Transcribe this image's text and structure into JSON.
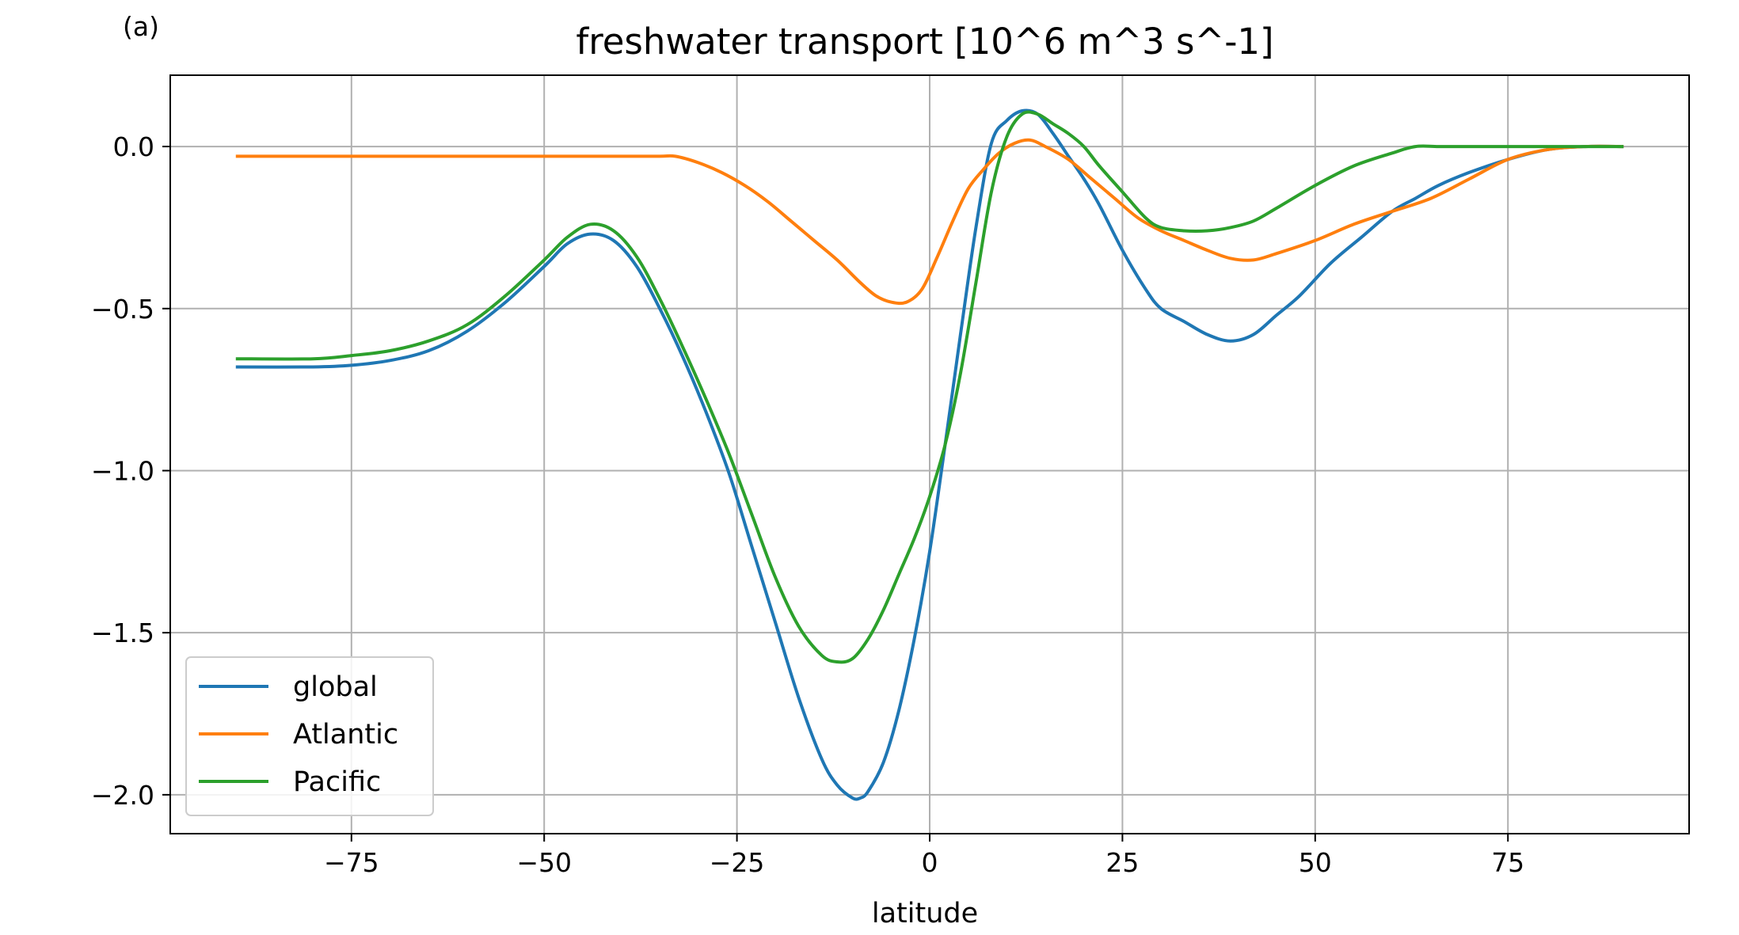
{
  "chart_data": {
    "type": "line",
    "panel_label": "(a)",
    "title": "freshwater transport [10^6 m^3 s^-1]",
    "xlabel": "latitude",
    "ylabel": "",
    "xlim": [
      -98.5,
      98.5
    ],
    "ylim": [
      -2.12,
      0.22
    ],
    "xticks": [
      -75,
      -50,
      -25,
      0,
      25,
      50,
      75
    ],
    "xtick_labels": [
      "−75",
      "−50",
      "−25",
      "0",
      "25",
      "50",
      "75"
    ],
    "yticks": [
      0.0,
      -0.5,
      -1.0,
      -1.5,
      -2.0
    ],
    "ytick_labels": [
      "0.0",
      "−0.5",
      "−1.0",
      "−1.5",
      "−2.0"
    ],
    "grid": true,
    "legend_position": "lower-left",
    "series": [
      {
        "name": "global",
        "color": "#1f77b4",
        "x": [
          -90,
          -80,
          -75,
          -70,
          -65,
          -60,
          -55,
          -50,
          -47,
          -44,
          -41,
          -38,
          -35,
          -32,
          -29,
          -26,
          -23,
          -20,
          -17,
          -14,
          -12,
          -10,
          -9,
          -8,
          -6,
          -4,
          -2,
          0,
          2,
          4,
          6,
          8,
          10,
          12,
          14,
          16,
          18,
          20,
          22,
          25,
          28,
          30,
          33,
          36,
          39,
          42,
          45,
          48,
          52,
          56,
          60,
          63,
          66,
          70,
          75,
          80,
          85,
          90
        ],
        "y": [
          -0.68,
          -0.68,
          -0.675,
          -0.66,
          -0.63,
          -0.57,
          -0.48,
          -0.37,
          -0.3,
          -0.27,
          -0.29,
          -0.37,
          -0.5,
          -0.65,
          -0.82,
          -1.01,
          -1.24,
          -1.47,
          -1.7,
          -1.89,
          -1.97,
          -2.01,
          -2.01,
          -1.99,
          -1.9,
          -1.74,
          -1.52,
          -1.25,
          -0.92,
          -0.58,
          -0.25,
          0.01,
          0.08,
          0.11,
          0.1,
          0.04,
          -0.03,
          -0.1,
          -0.18,
          -0.32,
          -0.44,
          -0.5,
          -0.54,
          -0.58,
          -0.6,
          -0.58,
          -0.52,
          -0.46,
          -0.36,
          -0.28,
          -0.2,
          -0.16,
          -0.12,
          -0.08,
          -0.04,
          -0.01,
          0.0,
          0.0
        ]
      },
      {
        "name": "Atlantic",
        "color": "#ff7f0e",
        "x": [
          -90,
          -80,
          -70,
          -60,
          -50,
          -40,
          -35,
          -33,
          -30,
          -27,
          -24,
          -21,
          -18,
          -15,
          -12,
          -9,
          -7,
          -5,
          -3,
          -1,
          1,
          3,
          5,
          7,
          9,
          11,
          13,
          15,
          18,
          21,
          24,
          27,
          30,
          33,
          36,
          39,
          42,
          45,
          50,
          55,
          60,
          65,
          70,
          75,
          80,
          85,
          90
        ],
        "y": [
          -0.03,
          -0.03,
          -0.03,
          -0.03,
          -0.03,
          -0.03,
          -0.03,
          -0.03,
          -0.05,
          -0.08,
          -0.12,
          -0.17,
          -0.23,
          -0.29,
          -0.35,
          -0.42,
          -0.46,
          -0.48,
          -0.48,
          -0.44,
          -0.34,
          -0.23,
          -0.13,
          -0.07,
          -0.02,
          0.01,
          0.02,
          0.0,
          -0.04,
          -0.1,
          -0.16,
          -0.22,
          -0.26,
          -0.29,
          -0.32,
          -0.345,
          -0.35,
          -0.33,
          -0.29,
          -0.24,
          -0.2,
          -0.16,
          -0.1,
          -0.04,
          -0.01,
          0.0,
          0.0
        ]
      },
      {
        "name": "Pacific",
        "color": "#2ca02c",
        "x": [
          -90,
          -80,
          -75,
          -70,
          -65,
          -60,
          -55,
          -50,
          -47,
          -44,
          -41,
          -38,
          -35,
          -32,
          -29,
          -26,
          -23,
          -20,
          -17,
          -14,
          -12,
          -10,
          -8,
          -6,
          -4,
          -2,
          0,
          2,
          4,
          6,
          8,
          10,
          12,
          14,
          16,
          18,
          20,
          22,
          25,
          28,
          30,
          33,
          36,
          39,
          42,
          45,
          50,
          55,
          60,
          63,
          66,
          70,
          75,
          80,
          85,
          90
        ],
        "y": [
          -0.655,
          -0.655,
          -0.645,
          -0.63,
          -0.6,
          -0.55,
          -0.46,
          -0.35,
          -0.28,
          -0.24,
          -0.26,
          -0.34,
          -0.47,
          -0.62,
          -0.78,
          -0.95,
          -1.14,
          -1.33,
          -1.48,
          -1.57,
          -1.59,
          -1.58,
          -1.52,
          -1.43,
          -1.32,
          -1.21,
          -1.08,
          -0.92,
          -0.7,
          -0.42,
          -0.14,
          0.03,
          0.1,
          0.1,
          0.07,
          0.04,
          0.0,
          -0.06,
          -0.14,
          -0.22,
          -0.25,
          -0.26,
          -0.26,
          -0.25,
          -0.23,
          -0.19,
          -0.12,
          -0.06,
          -0.02,
          0.0,
          0.0,
          0.0,
          0.0,
          0.0,
          0.0,
          0.0
        ]
      }
    ]
  }
}
